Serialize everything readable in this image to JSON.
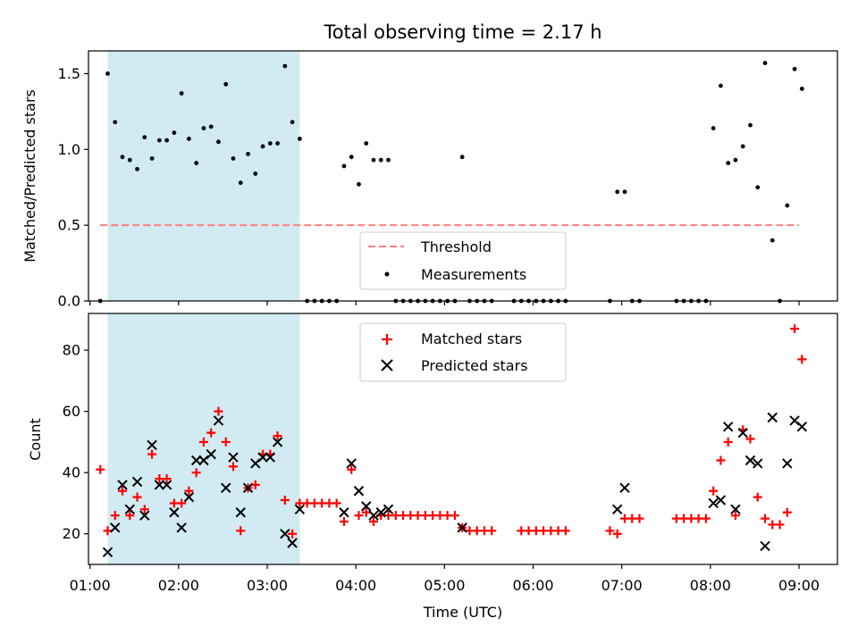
{
  "chart_data": {
    "type": "scatter",
    "title": "Total observing time = 2.17 h",
    "xlabel": "Time (UTC)",
    "xlim": [
      "00:59",
      "09:26"
    ],
    "xticks": [
      "01:00",
      "02:00",
      "03:00",
      "04:00",
      "05:00",
      "06:00",
      "07:00",
      "08:00",
      "09:00"
    ],
    "highlight": {
      "from": "01:12",
      "to": "03:22",
      "color": "#add8e6"
    },
    "top": {
      "ylabel": "Matched/Predicted stars",
      "ylim": [
        0,
        1.65
      ],
      "yticks": [
        "0.0",
        "0.5",
        "1.0",
        "1.5"
      ],
      "legend_position": "lower-center",
      "threshold": {
        "name": "Threshold",
        "value": 0.5,
        "from": "01:07",
        "to": "09:00",
        "color": "#ff7f7f"
      },
      "series": [
        {
          "name": "Measurements",
          "marker": "dot",
          "color": "#000000",
          "points": [
            [
              "01:07",
              0.0
            ],
            [
              "01:12",
              1.5
            ],
            [
              "01:17",
              1.18
            ],
            [
              "01:22",
              0.95
            ],
            [
              "01:27",
              0.93
            ],
            [
              "01:32",
              0.87
            ],
            [
              "01:37",
              1.08
            ],
            [
              "01:42",
              0.94
            ],
            [
              "01:47",
              1.06
            ],
            [
              "01:52",
              1.06
            ],
            [
              "01:57",
              1.11
            ],
            [
              "02:02",
              1.37
            ],
            [
              "02:07",
              1.07
            ],
            [
              "02:12",
              0.91
            ],
            [
              "02:17",
              1.14
            ],
            [
              "02:22",
              1.15
            ],
            [
              "02:27",
              1.05
            ],
            [
              "02:32",
              1.43
            ],
            [
              "02:37",
              0.94
            ],
            [
              "02:42",
              0.78
            ],
            [
              "02:47",
              0.97
            ],
            [
              "02:52",
              0.84
            ],
            [
              "02:57",
              1.02
            ],
            [
              "03:02",
              1.04
            ],
            [
              "03:07",
              1.04
            ],
            [
              "03:12",
              1.55
            ],
            [
              "03:17",
              1.18
            ],
            [
              "03:22",
              1.07
            ],
            [
              "03:27",
              0.0
            ],
            [
              "03:32",
              0.0
            ],
            [
              "03:37",
              0.0
            ],
            [
              "03:42",
              0.0
            ],
            [
              "03:47",
              0.0
            ],
            [
              "03:52",
              0.89
            ],
            [
              "03:57",
              0.95
            ],
            [
              "04:02",
              0.77
            ],
            [
              "04:07",
              1.04
            ],
            [
              "04:12",
              0.93
            ],
            [
              "04:17",
              0.93
            ],
            [
              "04:22",
              0.93
            ],
            [
              "04:27",
              0.0
            ],
            [
              "04:32",
              0.0
            ],
            [
              "04:37",
              0.0
            ],
            [
              "04:42",
              0.0
            ],
            [
              "04:47",
              0.0
            ],
            [
              "04:52",
              0.0
            ],
            [
              "04:57",
              0.0
            ],
            [
              "05:02",
              0.0
            ],
            [
              "05:07",
              0.0
            ],
            [
              "05:12",
              0.95
            ],
            [
              "05:17",
              0.0
            ],
            [
              "05:22",
              0.0
            ],
            [
              "05:27",
              0.0
            ],
            [
              "05:32",
              0.0
            ],
            [
              "05:47",
              0.0
            ],
            [
              "05:52",
              0.0
            ],
            [
              "05:57",
              0.0
            ],
            [
              "06:02",
              0.0
            ],
            [
              "06:07",
              0.0
            ],
            [
              "06:12",
              0.0
            ],
            [
              "06:17",
              0.0
            ],
            [
              "06:22",
              0.0
            ],
            [
              "06:52",
              0.0
            ],
            [
              "06:57",
              0.72
            ],
            [
              "07:02",
              0.72
            ],
            [
              "07:07",
              0.0
            ],
            [
              "07:12",
              0.0
            ],
            [
              "07:37",
              0.0
            ],
            [
              "07:42",
              0.0
            ],
            [
              "07:47",
              0.0
            ],
            [
              "07:52",
              0.0
            ],
            [
              "07:57",
              0.0
            ],
            [
              "08:02",
              1.14
            ],
            [
              "08:07",
              1.42
            ],
            [
              "08:12",
              0.91
            ],
            [
              "08:17",
              0.93
            ],
            [
              "08:22",
              1.02
            ],
            [
              "08:27",
              1.16
            ],
            [
              "08:32",
              0.75
            ],
            [
              "08:37",
              1.57
            ],
            [
              "08:42",
              0.4
            ],
            [
              "08:47",
              0.0
            ],
            [
              "08:52",
              0.63
            ],
            [
              "08:57",
              1.53
            ],
            [
              "09:02",
              1.4
            ]
          ]
        }
      ]
    },
    "bottom": {
      "ylabel": "Count",
      "ylim": [
        10,
        92
      ],
      "yticks": [
        "20",
        "40",
        "60",
        "80"
      ],
      "legend_position": "upper-center",
      "series": [
        {
          "name": "Matched stars",
          "marker": "plus",
          "color": "#ff0000",
          "points": [
            [
              "01:07",
              41
            ],
            [
              "01:12",
              21
            ],
            [
              "01:17",
              26
            ],
            [
              "01:22",
              34
            ],
            [
              "01:27",
              26
            ],
            [
              "01:32",
              32
            ],
            [
              "01:37",
              28
            ],
            [
              "01:42",
              46
            ],
            [
              "01:47",
              38
            ],
            [
              "01:52",
              38
            ],
            [
              "01:57",
              30
            ],
            [
              "02:02",
              30
            ],
            [
              "02:07",
              34
            ],
            [
              "02:12",
              40
            ],
            [
              "02:17",
              50
            ],
            [
              "02:22",
              53
            ],
            [
              "02:27",
              60
            ],
            [
              "02:32",
              50
            ],
            [
              "02:37",
              42
            ],
            [
              "02:42",
              21
            ],
            [
              "02:47",
              35
            ],
            [
              "02:52",
              36
            ],
            [
              "02:57",
              46
            ],
            [
              "03:02",
              46
            ],
            [
              "03:07",
              52
            ],
            [
              "03:12",
              31
            ],
            [
              "03:17",
              20
            ],
            [
              "03:22",
              30
            ],
            [
              "03:27",
              30
            ],
            [
              "03:32",
              30
            ],
            [
              "03:37",
              30
            ],
            [
              "03:42",
              30
            ],
            [
              "03:47",
              30
            ],
            [
              "03:52",
              24
            ],
            [
              "03:57",
              41
            ],
            [
              "04:02",
              26
            ],
            [
              "04:07",
              27
            ],
            [
              "04:12",
              24
            ],
            [
              "04:17",
              26
            ],
            [
              "04:22",
              26
            ],
            [
              "04:27",
              26
            ],
            [
              "04:32",
              26
            ],
            [
              "04:37",
              26
            ],
            [
              "04:42",
              26
            ],
            [
              "04:47",
              26
            ],
            [
              "04:52",
              26
            ],
            [
              "04:57",
              26
            ],
            [
              "05:02",
              26
            ],
            [
              "05:07",
              26
            ],
            [
              "05:12",
              22
            ],
            [
              "05:17",
              21
            ],
            [
              "05:22",
              21
            ],
            [
              "05:27",
              21
            ],
            [
              "05:32",
              21
            ],
            [
              "05:52",
              21
            ],
            [
              "05:57",
              21
            ],
            [
              "06:02",
              21
            ],
            [
              "06:07",
              21
            ],
            [
              "06:12",
              21
            ],
            [
              "06:17",
              21
            ],
            [
              "06:22",
              21
            ],
            [
              "06:52",
              21
            ],
            [
              "06:57",
              20
            ],
            [
              "07:02",
              25
            ],
            [
              "07:07",
              25
            ],
            [
              "07:12",
              25
            ],
            [
              "07:37",
              25
            ],
            [
              "07:42",
              25
            ],
            [
              "07:47",
              25
            ],
            [
              "07:52",
              25
            ],
            [
              "07:57",
              25
            ],
            [
              "08:02",
              34
            ],
            [
              "08:07",
              44
            ],
            [
              "08:12",
              50
            ],
            [
              "08:17",
              26
            ],
            [
              "08:22",
              54
            ],
            [
              "08:27",
              51
            ],
            [
              "08:32",
              32
            ],
            [
              "08:37",
              25
            ],
            [
              "08:42",
              23
            ],
            [
              "08:47",
              23
            ],
            [
              "08:52",
              27
            ],
            [
              "08:57",
              87
            ],
            [
              "09:02",
              77
            ]
          ]
        },
        {
          "name": "Predicted stars",
          "marker": "x",
          "color": "#000000",
          "points": [
            [
              "01:12",
              14
            ],
            [
              "01:17",
              22
            ],
            [
              "01:22",
              36
            ],
            [
              "01:27",
              28
            ],
            [
              "01:32",
              37
            ],
            [
              "01:37",
              26
            ],
            [
              "01:42",
              49
            ],
            [
              "01:47",
              36
            ],
            [
              "01:52",
              36
            ],
            [
              "01:57",
              27
            ],
            [
              "02:02",
              22
            ],
            [
              "02:07",
              32
            ],
            [
              "02:12",
              44
            ],
            [
              "02:17",
              44
            ],
            [
              "02:22",
              46
            ],
            [
              "02:27",
              57
            ],
            [
              "02:32",
              35
            ],
            [
              "02:37",
              45
            ],
            [
              "02:42",
              27
            ],
            [
              "02:47",
              35
            ],
            [
              "02:52",
              43
            ],
            [
              "02:57",
              45
            ],
            [
              "03:02",
              45
            ],
            [
              "03:07",
              50
            ],
            [
              "03:12",
              20
            ],
            [
              "03:17",
              17
            ],
            [
              "03:22",
              28
            ],
            [
              "03:52",
              27
            ],
            [
              "03:57",
              43
            ],
            [
              "04:02",
              34
            ],
            [
              "04:07",
              29
            ],
            [
              "04:12",
              26
            ],
            [
              "04:17",
              27
            ],
            [
              "04:22",
              28
            ],
            [
              "05:12",
              22
            ],
            [
              "06:57",
              28
            ],
            [
              "07:02",
              35
            ],
            [
              "08:02",
              30
            ],
            [
              "08:07",
              31
            ],
            [
              "08:12",
              55
            ],
            [
              "08:17",
              28
            ],
            [
              "08:22",
              53
            ],
            [
              "08:27",
              44
            ],
            [
              "08:32",
              43
            ],
            [
              "08:37",
              16
            ],
            [
              "08:42",
              58
            ],
            [
              "08:52",
              43
            ],
            [
              "08:57",
              57
            ],
            [
              "09:02",
              55
            ]
          ]
        }
      ]
    }
  }
}
